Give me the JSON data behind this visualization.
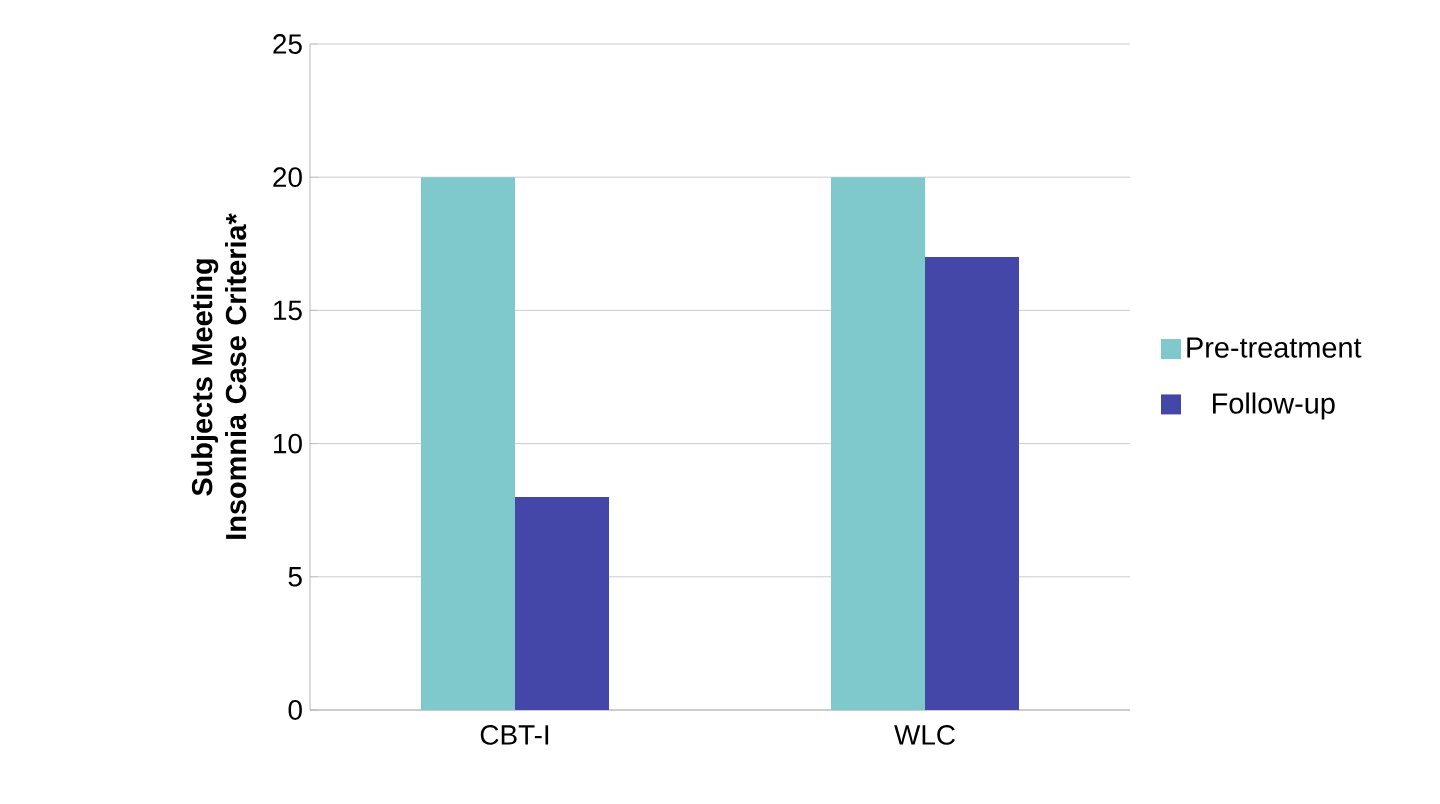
{
  "chart_data": {
    "type": "bar",
    "ylabel": "Subjects Meeting Insomnia Case Criteria*",
    "categories": [
      "CBT-I",
      "WLC"
    ],
    "series": [
      {
        "name": "Pre-treatment",
        "color": "#7fc8cc",
        "values": [
          20,
          20
        ]
      },
      {
        "name": "Follow-up",
        "color": "#4447a8",
        "values": [
          8,
          17
        ]
      }
    ],
    "ylim": [
      0,
      25
    ],
    "yticks": [
      0,
      5,
      10,
      15,
      20,
      25
    ],
    "grid": "y",
    "legend": "right"
  }
}
